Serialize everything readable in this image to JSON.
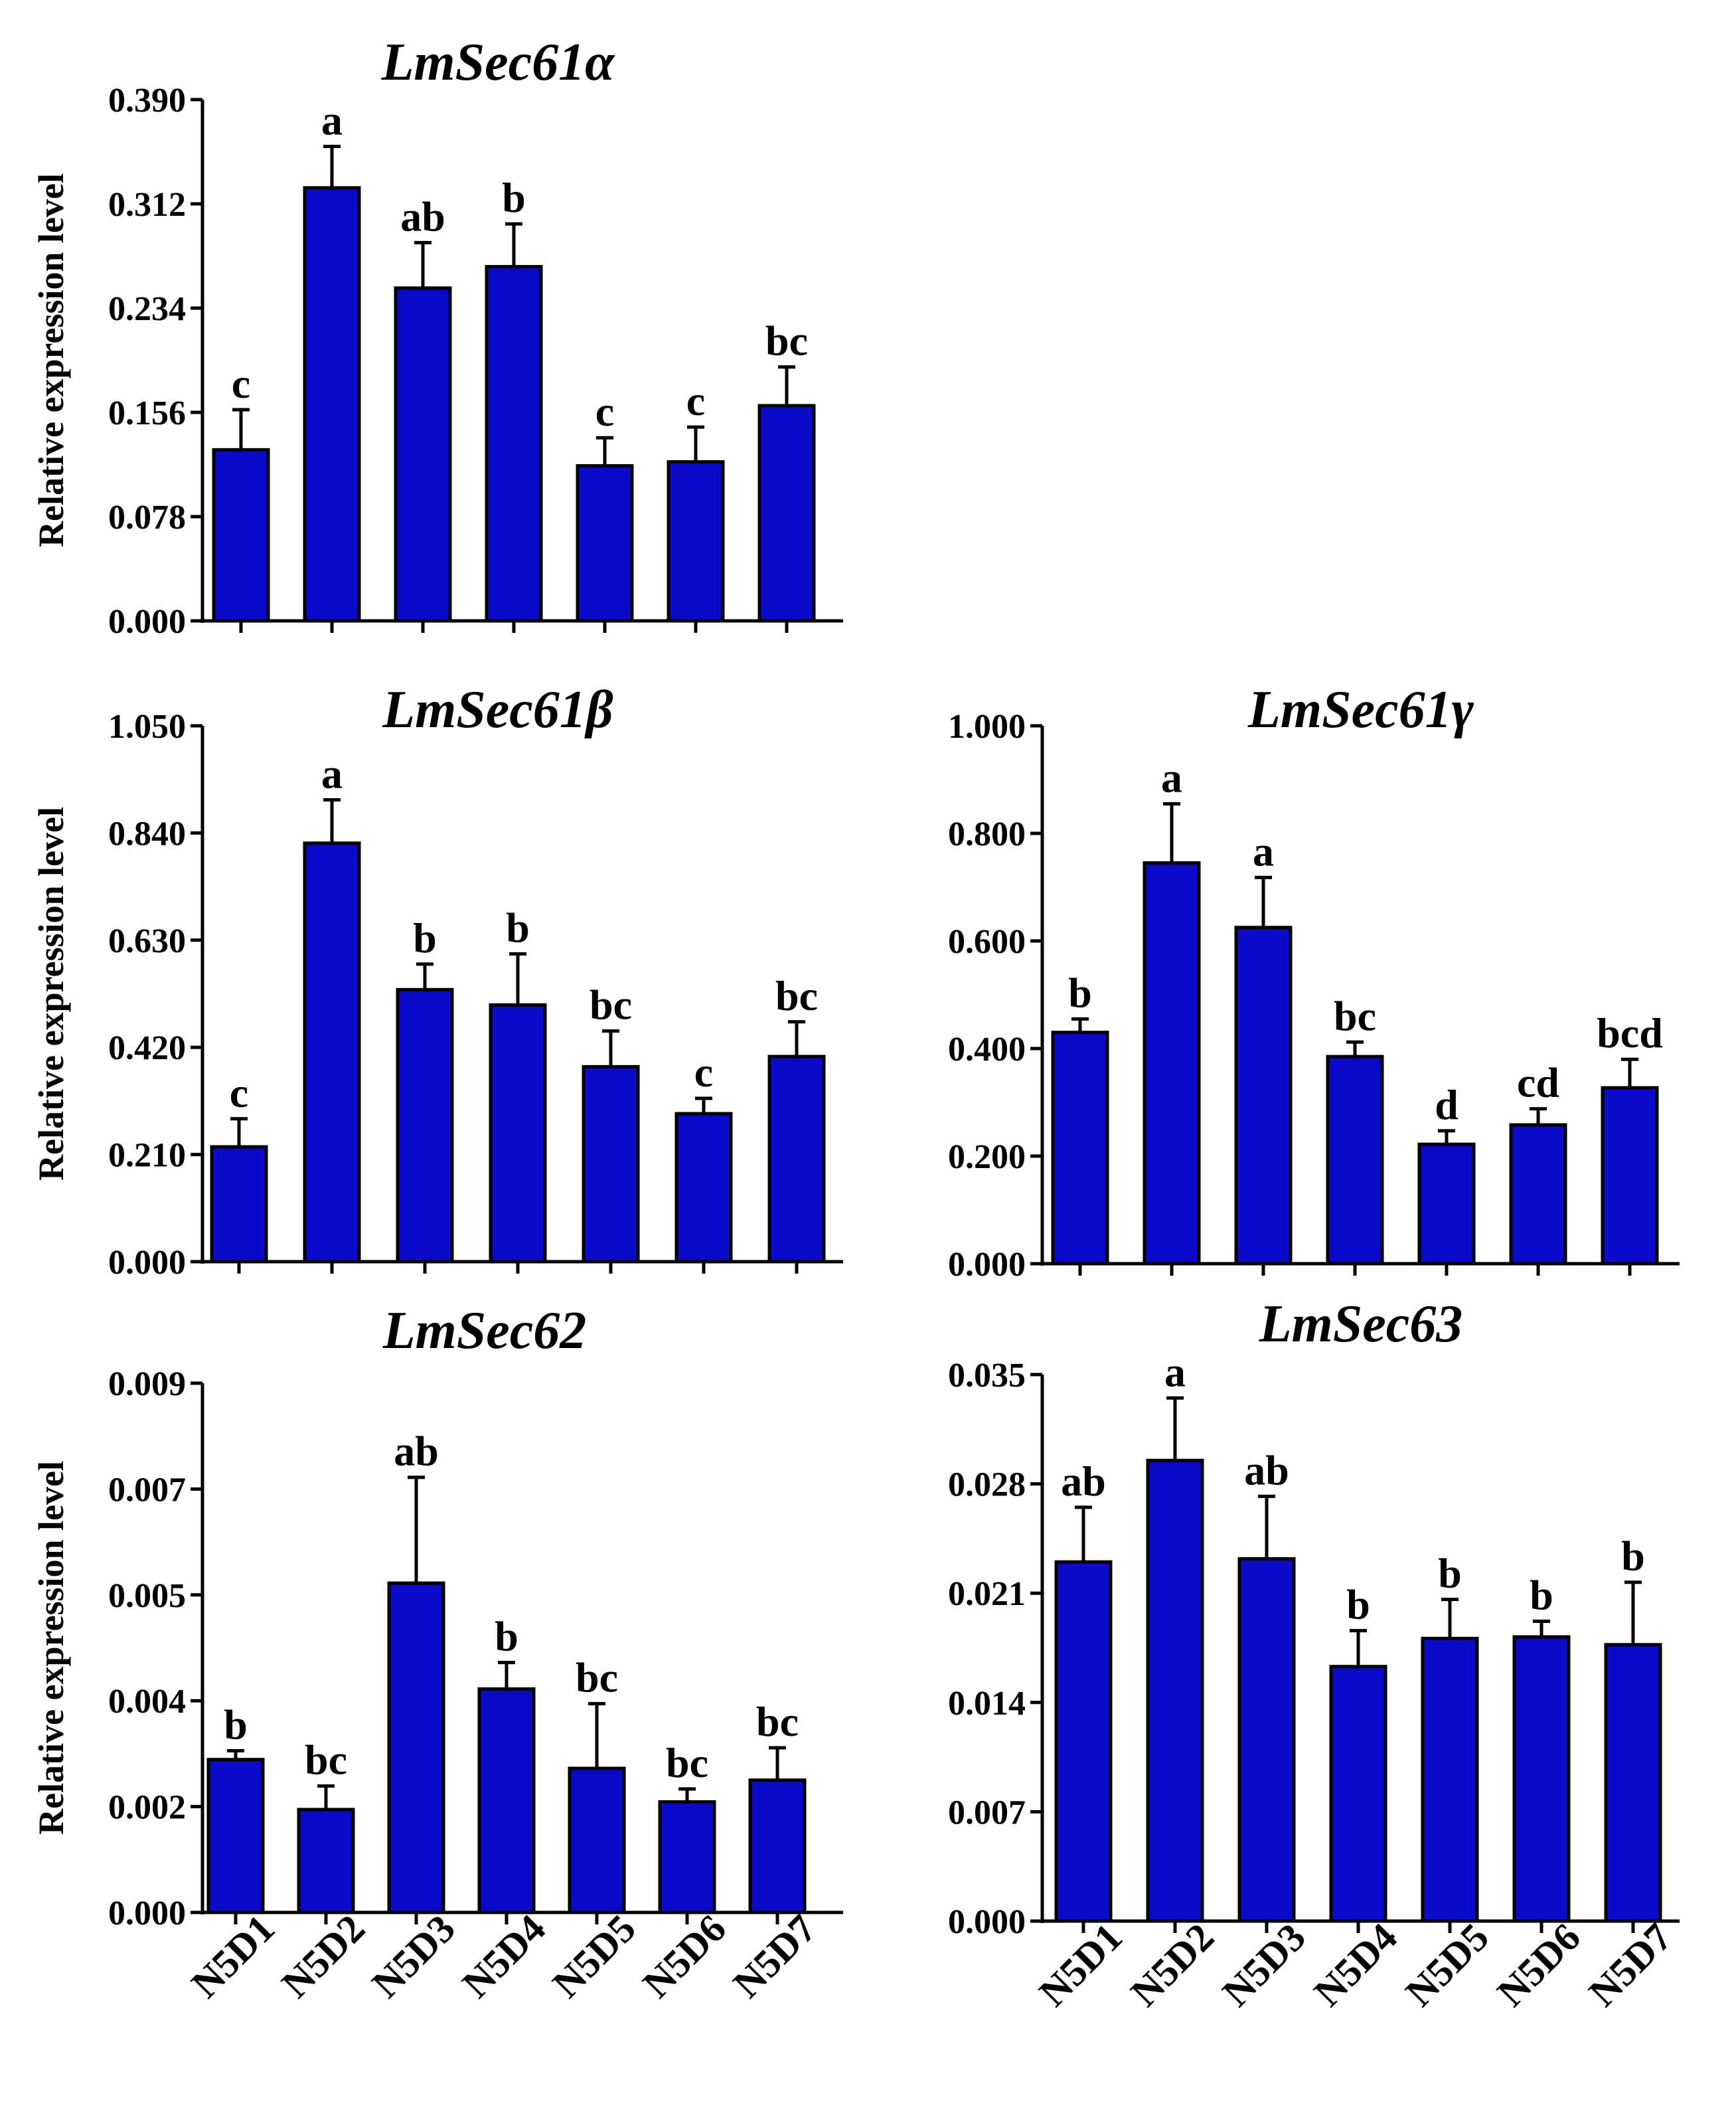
{
  "chart_data": [
    {
      "type": "bar",
      "title": "LmSec61α",
      "ylabel": "Relative expression level",
      "xlabel": "",
      "ylim": [
        0,
        0.39
      ],
      "yticks": [
        "0.000",
        "0.078",
        "0.156",
        "0.234",
        "0.312",
        "0.390"
      ],
      "categories": [
        "N5D1",
        "N5D2",
        "N5D3",
        "N5D4",
        "N5D5",
        "N5D6",
        "N5D7"
      ],
      "show_category_labels": false,
      "values": [
        0.128,
        0.324,
        0.249,
        0.265,
        0.116,
        0.119,
        0.161
      ],
      "errors": [
        0.03,
        0.031,
        0.034,
        0.032,
        0.021,
        0.026,
        0.029
      ],
      "significance": [
        "c",
        "a",
        "ab",
        "b",
        "c",
        "c",
        "bc"
      ],
      "bar_color": "#0a0ac8"
    },
    {
      "type": "bar",
      "title": "LmSec61β",
      "ylabel": "Relative expression level",
      "xlabel": "",
      "ylim": [
        0,
        1.05
      ],
      "yticks": [
        "0.000",
        "0.210",
        "0.420",
        "0.630",
        "0.840",
        "1.050"
      ],
      "categories": [
        "N5D1",
        "N5D2",
        "N5D3",
        "N5D4",
        "N5D5",
        "N5D6",
        "N5D7"
      ],
      "show_category_labels": false,
      "values": [
        0.225,
        0.82,
        0.533,
        0.503,
        0.382,
        0.29,
        0.402
      ],
      "errors": [
        0.055,
        0.085,
        0.05,
        0.1,
        0.07,
        0.03,
        0.068
      ],
      "significance": [
        "c",
        "a",
        "b",
        "b",
        "bc",
        "c",
        "bc"
      ],
      "bar_color": "#0a0ac8"
    },
    {
      "type": "bar",
      "title": "LmSec61γ",
      "ylabel": "",
      "xlabel": "",
      "ylim": [
        0,
        1.0
      ],
      "yticks": [
        "0.000",
        "0.200",
        "0.400",
        "0.600",
        "0.800",
        "1.000"
      ],
      "categories": [
        "N5D1",
        "N5D2",
        "N5D3",
        "N5D4",
        "N5D5",
        "N5D6",
        "N5D7"
      ],
      "show_category_labels": false,
      "values": [
        0.43,
        0.745,
        0.625,
        0.385,
        0.222,
        0.258,
        0.327
      ],
      "errors": [
        0.025,
        0.11,
        0.093,
        0.027,
        0.025,
        0.03,
        0.053
      ],
      "significance": [
        "b",
        "a",
        "a",
        "bc",
        "d",
        "cd",
        "bcd"
      ],
      "bar_color": "#0a0ac8"
    },
    {
      "type": "bar",
      "title": "LmSec62",
      "ylabel": "Relative expression level",
      "xlabel": "",
      "ylim": [
        0,
        0.009
      ],
      "yticks": [
        "0.000",
        "0.002",
        "0.004",
        "0.005",
        "0.007",
        "0.009"
      ],
      "categories": [
        "N5D1",
        "N5D2",
        "N5D3",
        "N5D4",
        "N5D5",
        "N5D6",
        "N5D7"
      ],
      "show_category_labels": true,
      "values": [
        0.0026,
        0.00175,
        0.0056,
        0.0038,
        0.00245,
        0.00188,
        0.00225
      ],
      "errors": [
        0.00015,
        0.0004,
        0.0018,
        0.00045,
        0.0011,
        0.00022,
        0.00055
      ],
      "significance": [
        "b",
        "bc",
        "ab",
        "b",
        "bc",
        "bc",
        "bc"
      ],
      "bar_color": "#0a0ac8"
    },
    {
      "type": "bar",
      "title": "LmSec63",
      "ylabel": "",
      "xlabel": "",
      "ylim": [
        0,
        0.035
      ],
      "yticks": [
        "0.000",
        "0.007",
        "0.014",
        "0.021",
        "0.028",
        "0.035"
      ],
      "categories": [
        "N5D1",
        "N5D2",
        "N5D3",
        "N5D4",
        "N5D5",
        "N5D6",
        "N5D7"
      ],
      "show_category_labels": true,
      "values": [
        0.023,
        0.0295,
        0.0232,
        0.0163,
        0.0181,
        0.0182,
        0.0177
      ],
      "errors": [
        0.0035,
        0.004,
        0.004,
        0.0023,
        0.0025,
        0.001,
        0.004
      ],
      "significance": [
        "ab",
        "a",
        "ab",
        "b",
        "b",
        "b",
        "b"
      ],
      "bar_color": "#0a0ac8"
    }
  ]
}
